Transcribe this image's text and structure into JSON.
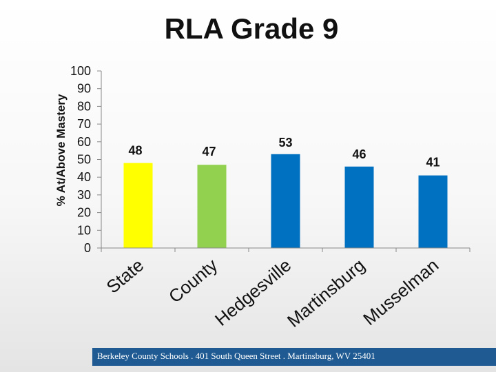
{
  "chart_data": {
    "type": "bar",
    "title": "RLA Grade 9",
    "xlabel": "",
    "ylabel": "% At/Above Mastery",
    "ylim": [
      0,
      100
    ],
    "yticks": [
      0,
      10,
      20,
      30,
      40,
      50,
      60,
      70,
      80,
      90,
      100
    ],
    "grid": false,
    "categories": [
      "State",
      "County",
      "Hedgesville",
      "Martinsburg",
      "Musselman"
    ],
    "values": [
      48,
      47,
      53,
      46,
      41
    ],
    "colors": [
      "#ffff00",
      "#92d050",
      "#0070c0",
      "#0070c0",
      "#0070c0"
    ]
  },
  "footer": {
    "text": "Berkeley County Schools . 401 South Queen Street . Martinsburg, WV 25401",
    "color": "#1f5a92"
  }
}
